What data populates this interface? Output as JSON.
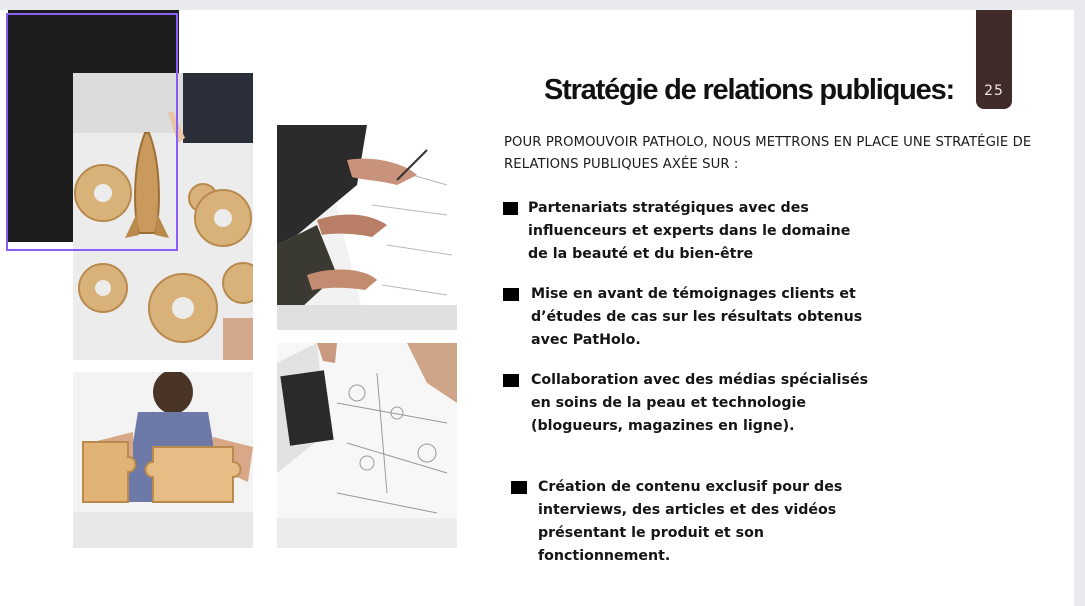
{
  "slide": {
    "title": "Stratégie de relations publiques:",
    "page_number": "25",
    "intro": "POUR PROMOUVOIR PATHOLO, NOUS METTRONS EN PLACE UNE STRATÉGIE DE RELATIONS PUBLIQUES AXÉE SUR :",
    "bullets": [
      "Partenariats stratégiques avec des influenceurs et experts dans le domaine de la beauté et du bien-être",
      "Mise en avant de témoignages clients et d’études de cas sur les résultats obtenus avec PatHolo.",
      "Collaboration avec des médias spécialisés en soins de la peau et technologie (blogueurs, magazines en ligne).",
      "Création de contenu exclusif pour des interviews, des articles et des vidéos présentant le produit et son fonctionnement."
    ]
  },
  "photos": [
    {
      "name": "wooden-gears-rocket-photo"
    },
    {
      "name": "hands-writing-documents-photo"
    },
    {
      "name": "woman-puzzle-pieces-photo"
    },
    {
      "name": "technical-drawings-photo"
    }
  ],
  "colors": {
    "accent_tab": "#3f2b27",
    "selection_frame": "#8b5cf6",
    "dark_block": "#1d1d1d",
    "page_background": "#e9eaee"
  }
}
